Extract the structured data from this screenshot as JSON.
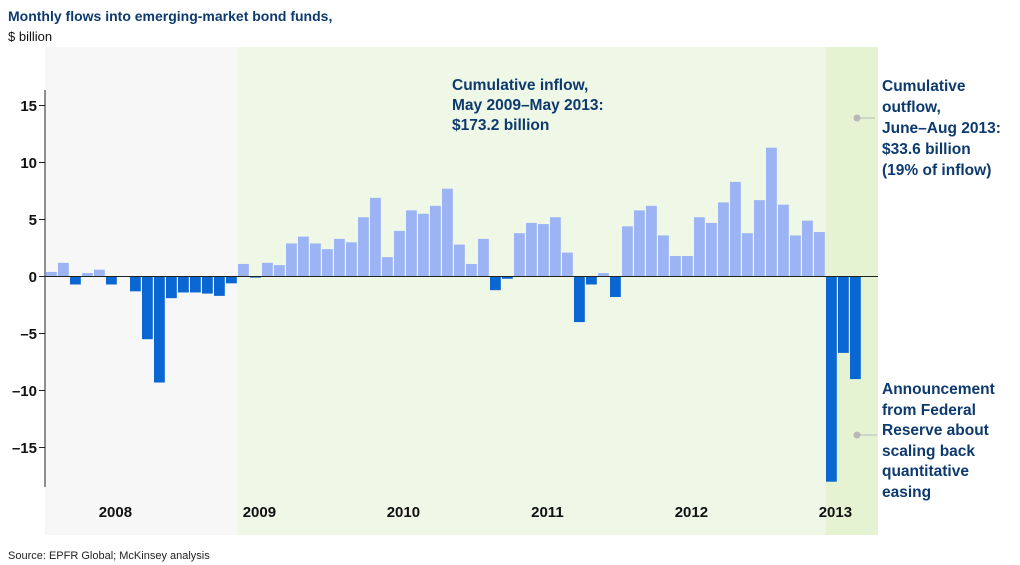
{
  "header": {
    "title": "Monthly flows into emerging-market bond funds,",
    "subtitle": "$ billion"
  },
  "footer": {
    "source": "Source: EPFR Global; McKinsey analysis"
  },
  "annotations": {
    "inflow": [
      "Cumulative inflow,",
      "May 2009–May 2013:",
      "$173.2 billion"
    ],
    "outflow": [
      "Cumulative",
      "outflow,",
      "June–Aug 2013:",
      "$33.6 billion",
      "(19% of inflow)"
    ],
    "fed": [
      "Announcement",
      "from Federal",
      "Reserve about",
      "scaling back",
      "quantitative",
      "easing"
    ]
  },
  "colors": {
    "positive": "#9cb4f4",
    "negative": "#0a66d1",
    "inflow_band": "#eff7e6",
    "outflow_band": "#e5f3d3",
    "plot_bg": "#f7f7f7",
    "annotation_text": "#0d3a6e"
  },
  "chart_data": {
    "type": "bar",
    "title": "Monthly flows into emerging-market bond funds,",
    "ylabel": "$ billion",
    "ylim": [
      -18,
      18
    ],
    "yticks": [
      15,
      10,
      5,
      0,
      -5,
      -10,
      -15
    ],
    "ytick_labels": [
      "15",
      "10",
      "5",
      "0",
      "–5",
      "–10",
      "–15"
    ],
    "year_labels": [
      "2008",
      "2009",
      "2010",
      "2011",
      "2012",
      "2013"
    ],
    "start_month": "2008-01",
    "months": [
      "2008-01",
      "2008-02",
      "2008-03",
      "2008-04",
      "2008-05",
      "2008-06",
      "2008-07",
      "2008-08",
      "2008-09",
      "2008-10",
      "2008-11",
      "2008-12",
      "2009-01",
      "2009-02",
      "2009-03",
      "2009-04",
      "2009-05",
      "2009-06",
      "2009-07",
      "2009-08",
      "2009-09",
      "2009-10",
      "2009-11",
      "2009-12",
      "2010-01",
      "2010-02",
      "2010-03",
      "2010-04",
      "2010-05",
      "2010-06",
      "2010-07",
      "2010-08",
      "2010-09",
      "2010-10",
      "2010-11",
      "2010-12",
      "2011-01",
      "2011-02",
      "2011-03",
      "2011-04",
      "2011-05",
      "2011-06",
      "2011-07",
      "2011-08",
      "2011-09",
      "2011-10",
      "2011-11",
      "2011-12",
      "2012-01",
      "2012-02",
      "2012-03",
      "2012-04",
      "2012-05",
      "2012-06",
      "2012-07",
      "2012-08",
      "2012-09",
      "2012-10",
      "2012-11",
      "2012-12",
      "2013-01",
      "2013-02",
      "2013-03",
      "2013-04",
      "2013-05",
      "2013-06",
      "2013-07",
      "2013-08"
    ],
    "values": [
      0.4,
      1.2,
      -0.7,
      0.3,
      0.6,
      -0.7,
      0,
      -1.3,
      -5.5,
      -9.3,
      -1.9,
      -1.4,
      -1.4,
      -1.5,
      -1.7,
      -0.6,
      1.1,
      -0.1,
      1.2,
      1.0,
      2.9,
      3.5,
      2.9,
      2.4,
      3.3,
      3.0,
      5.2,
      6.9,
      1.7,
      4.0,
      5.8,
      5.5,
      6.2,
      7.7,
      2.8,
      1.1,
      3.3,
      -1.2,
      -0.2,
      3.8,
      4.7,
      4.6,
      5.2,
      2.1,
      -4.0,
      -0.7,
      0.3,
      -1.8,
      4.4,
      5.8,
      6.2,
      3.6,
      1.8,
      1.8,
      5.2,
      4.7,
      6.5,
      8.3,
      3.8,
      6.7,
      11.3,
      6.3,
      3.6,
      4.9,
      3.9,
      -18.0,
      -6.7,
      -9.0
    ],
    "shaded_periods": [
      {
        "name": "inflow",
        "from": "2009-05",
        "to": "2013-05"
      },
      {
        "name": "outflow",
        "from": "2013-06",
        "to": "2013-08"
      }
    ],
    "grid": false,
    "legend": "none"
  }
}
